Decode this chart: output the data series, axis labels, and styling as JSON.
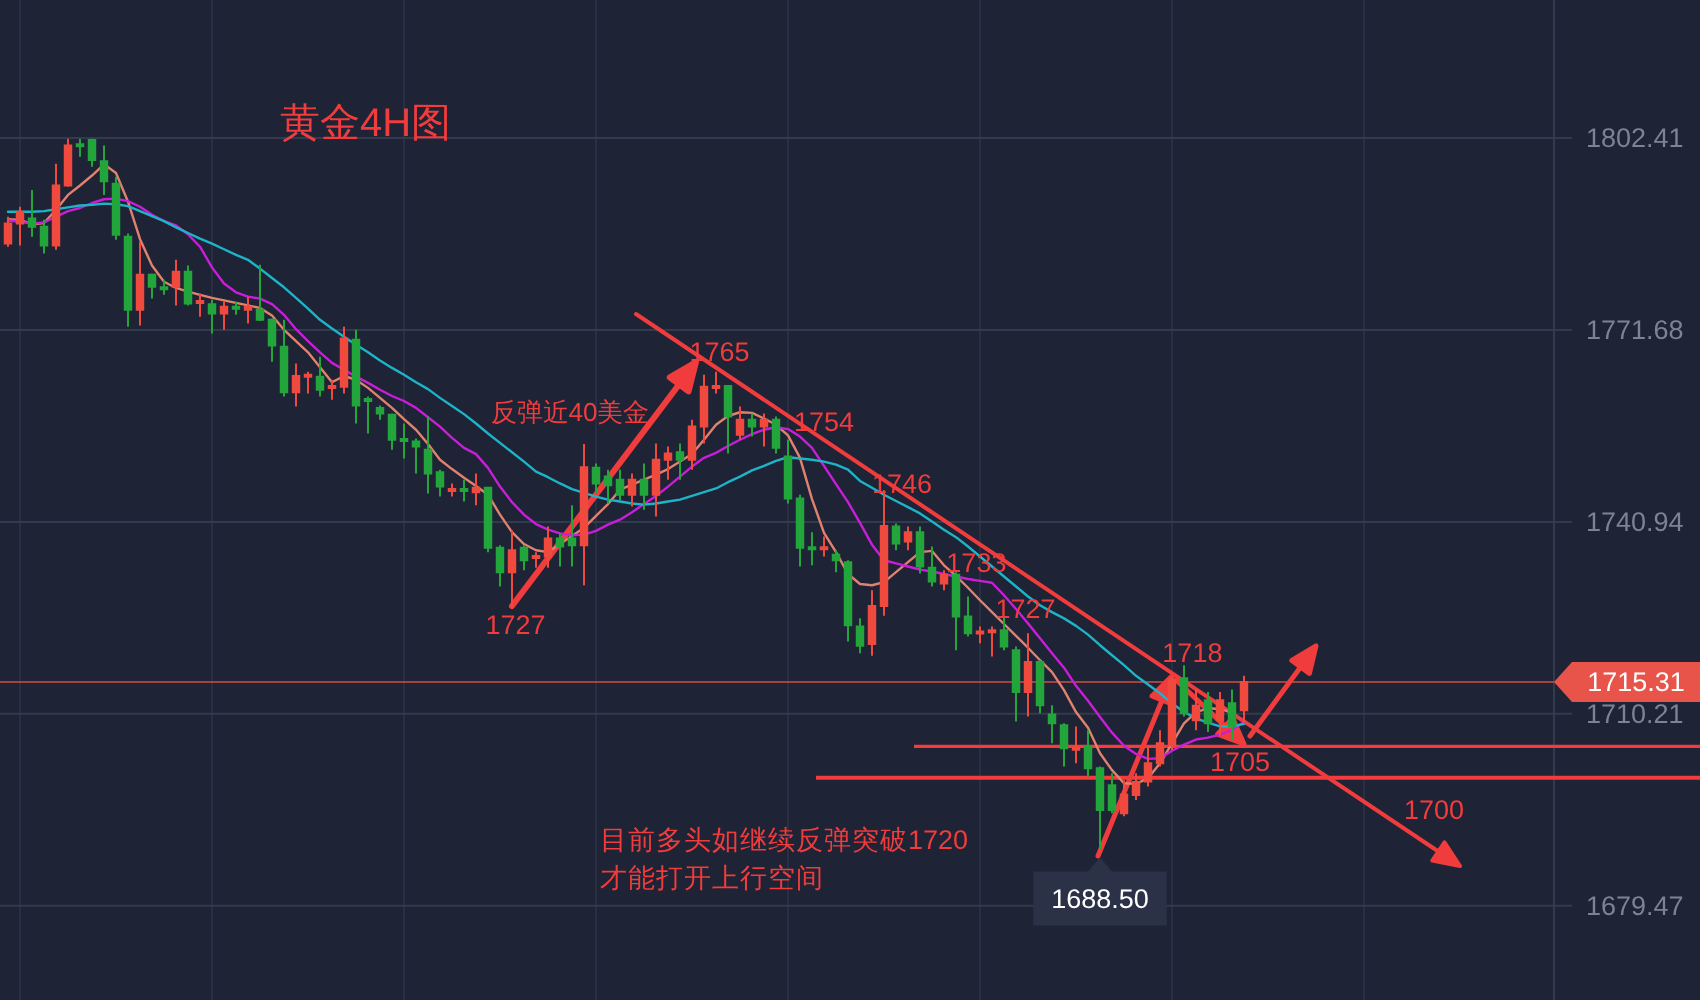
{
  "chart_data": {
    "type": "candlestick",
    "title": "黄金4H图",
    "categories": [
      null,
      null,
      null,
      null,
      null,
      null,
      null,
      null,
      null,
      null,
      null,
      null,
      null,
      null,
      null,
      null,
      null,
      null,
      null,
      null,
      null,
      null,
      null,
      null,
      null,
      null,
      null,
      null,
      null,
      null,
      null,
      null,
      null,
      null,
      null,
      null,
      null,
      null,
      null,
      null,
      null,
      null,
      null,
      null,
      null,
      null,
      null,
      null,
      null,
      null,
      null,
      null,
      null,
      null,
      null,
      null,
      null,
      null,
      null,
      null,
      null,
      null,
      null,
      null,
      null,
      null,
      null,
      null,
      null,
      null,
      null,
      null,
      null,
      null,
      null,
      null,
      null,
      null,
      null,
      null,
      null,
      null,
      null,
      null,
      null,
      null,
      null,
      null,
      null,
      null,
      null,
      null,
      null,
      null,
      null,
      null,
      null,
      null,
      null,
      null,
      null,
      null,
      null,
      null
    ],
    "ohlc": [
      [
        1785.5,
        1789.8,
        1785.0,
        1788.7
      ],
      [
        1788.7,
        1791.4,
        1785.2,
        1790.6
      ],
      [
        1789.5,
        1794.1,
        1786.6,
        1788.2
      ],
      [
        1788.2,
        1789.3,
        1783.9,
        1785.2
      ],
      [
        1785.2,
        1798.3,
        1784.5,
        1794.8
      ],
      [
        1794.8,
        1802.3,
        1794.6,
        1801.2
      ],
      [
        1801.4,
        1802.3,
        1799.4,
        1801.1
      ],
      [
        1802.1,
        1802.3,
        1797.8,
        1798.9
      ],
      [
        1798.7,
        1801.2,
        1793.3,
        1795.5
      ],
      [
        1795.1,
        1796.2,
        1786.1,
        1786.9
      ],
      [
        1786.6,
        1787.1,
        1772.2,
        1774.9
      ],
      [
        1774.9,
        1785.8,
        1772.4,
        1780.5
      ],
      [
        1780.5,
        1780.7,
        1776.7,
        1778.6
      ],
      [
        1778.5,
        1779.7,
        1777.3,
        1778.3
      ],
      [
        1778.6,
        1782.9,
        1775.6,
        1781.0
      ],
      [
        1781.0,
        1782.0,
        1775.6,
        1775.9
      ],
      [
        1776.0,
        1777.5,
        1773.8,
        1776.3
      ],
      [
        1775.8,
        1776.5,
        1771.1,
        1774.3
      ],
      [
        1774.3,
        1776.2,
        1771.7,
        1775.4
      ],
      [
        1775.4,
        1776.2,
        1774.1,
        1775.3
      ],
      [
        1774.9,
        1777.0,
        1772.7,
        1775.4
      ],
      [
        1774.9,
        1782.1,
        1773.1,
        1773.3
      ],
      [
        1773.3,
        1773.5,
        1766.6,
        1769.2
      ],
      [
        1769.0,
        1773.3,
        1761.0,
        1761.7
      ],
      [
        1761.7,
        1766.3,
        1759.4,
        1764.3
      ],
      [
        1764.2,
        1765.0,
        1761.5,
        1764.5
      ],
      [
        1764.2,
        1767.4,
        1761.0,
        1762.1
      ],
      [
        1762.4,
        1763.7,
        1760.5,
        1762.7
      ],
      [
        1762.6,
        1772.2,
        1761.5,
        1770.3
      ],
      [
        1770.1,
        1771.7,
        1756.7,
        1759.6
      ],
      [
        1760.6,
        1761.0,
        1755.1,
        1760.4
      ],
      [
        1759.2,
        1759.6,
        1757.3,
        1758.3
      ],
      [
        1758.1,
        1758.3,
        1752.5,
        1754.1
      ],
      [
        1754.2,
        1756.7,
        1751.1,
        1754.0
      ],
      [
        1753.8,
        1754.3,
        1748.7,
        1753.0
      ],
      [
        1752.5,
        1757.8,
        1745.5,
        1748.7
      ],
      [
        1748.9,
        1749.3,
        1745.0,
        1746.6
      ],
      [
        1745.9,
        1747.1,
        1745.0,
        1746.2
      ],
      [
        1746.2,
        1747.7,
        1744.2,
        1746.0
      ],
      [
        1745.7,
        1748.7,
        1743.6,
        1746.4
      ],
      [
        1746.4,
        1746.5,
        1736.1,
        1736.8
      ],
      [
        1736.8,
        1737.2,
        1730.6,
        1732.9
      ],
      [
        1732.9,
        1739.6,
        1727.0,
        1736.4
      ],
      [
        1736.8,
        1737.2,
        1733.2,
        1734.8
      ],
      [
        1735.2,
        1736.1,
        1733.6,
        1735.5
      ],
      [
        1735.4,
        1740.2,
        1733.6,
        1738.3
      ],
      [
        1738.3,
        1739.1,
        1733.8,
        1737.0
      ],
      [
        1738.3,
        1743.6,
        1733.8,
        1737.2
      ],
      [
        1737.2,
        1753.4,
        1730.8,
        1749.7
      ],
      [
        1749.6,
        1750.3,
        1745.5,
        1747.1
      ],
      [
        1748.2,
        1749.3,
        1743.9,
        1746.8
      ],
      [
        1747.7,
        1749.3,
        1744.4,
        1745.3
      ],
      [
        1745.3,
        1748.7,
        1743.4,
        1747.7
      ],
      [
        1747.7,
        1750.3,
        1742.9,
        1745.3
      ],
      [
        1745.3,
        1753.5,
        1741.8,
        1750.9
      ],
      [
        1750.9,
        1753.0,
        1747.7,
        1751.9
      ],
      [
        1752.1,
        1753.5,
        1747.7,
        1750.9
      ],
      [
        1750.9,
        1757.3,
        1749.3,
        1756.2
      ],
      [
        1756.2,
        1764.5,
        1753.5,
        1762.6
      ],
      [
        1762.5,
        1765.0,
        1761.5,
        1762.7
      ],
      [
        1762.7,
        1762.8,
        1751.9,
        1757.8
      ],
      [
        1754.9,
        1759.4,
        1754.1,
        1757.3
      ],
      [
        1757.3,
        1758.3,
        1754.6,
        1756.2
      ],
      [
        1756.2,
        1758.3,
        1753.0,
        1757.3
      ],
      [
        1757.3,
        1757.8,
        1751.9,
        1752.8
      ],
      [
        1751.4,
        1754.1,
        1743.9,
        1744.7
      ],
      [
        1744.7,
        1745.3,
        1733.8,
        1736.8
      ],
      [
        1736.9,
        1739.3,
        1734.0,
        1736.7
      ],
      [
        1736.7,
        1738.6,
        1735.4,
        1736.9
      ],
      [
        1735.7,
        1736.4,
        1732.9,
        1734.8
      ],
      [
        1734.5,
        1734.8,
        1721.8,
        1724.4
      ],
      [
        1724.2,
        1725.5,
        1719.9,
        1721.1
      ],
      [
        1721.4,
        1730.0,
        1719.5,
        1727.5
      ],
      [
        1727.5,
        1746.0,
        1725.9,
        1740.3
      ],
      [
        1740.2,
        1740.7,
        1736.4,
        1737.5
      ],
      [
        1737.8,
        1740.2,
        1736.4,
        1739.3
      ],
      [
        1739.3,
        1740.2,
        1732.7,
        1733.8
      ],
      [
        1733.6,
        1737.0,
        1730.6,
        1731.4
      ],
      [
        1731.1,
        1733.2,
        1730.0,
        1732.5
      ],
      [
        1732.5,
        1732.9,
        1720.4,
        1725.8
      ],
      [
        1725.8,
        1729.0,
        1722.6,
        1723.1
      ],
      [
        1723.1,
        1724.2,
        1721.5,
        1723.4
      ],
      [
        1723.4,
        1724.2,
        1719.4,
        1723.6
      ],
      [
        1723.6,
        1725.8,
        1720.4,
        1721.0
      ],
      [
        1720.4,
        1721.0,
        1709.0,
        1713.7
      ],
      [
        1713.7,
        1723.1,
        1709.8,
        1718.5
      ],
      [
        1718.5,
        1718.8,
        1710.3,
        1711.6
      ],
      [
        1710.1,
        1711.6,
        1705.5,
        1708.7
      ],
      [
        1708.4,
        1708.7,
        1701.8,
        1704.7
      ],
      [
        1704.6,
        1708.2,
        1702.3,
        1704.8
      ],
      [
        1704.9,
        1707.6,
        1700.2,
        1701.5
      ],
      [
        1701.5,
        1701.8,
        1688.5,
        1694.8
      ],
      [
        1698.8,
        1700.7,
        1694.3,
        1694.8
      ],
      [
        1694.3,
        1699.6,
        1693.8,
        1697.3
      ],
      [
        1697.2,
        1700.7,
        1696.4,
        1699.3
      ],
      [
        1699.4,
        1705.0,
        1698.6,
        1702.3
      ],
      [
        1702.3,
        1707.6,
        1701.8,
        1705.5
      ],
      [
        1705.2,
        1716.2,
        1704.4,
        1715.6
      ],
      [
        1715.9,
        1718.0,
        1709.8,
        1710.3
      ],
      [
        1709.2,
        1714.1,
        1707.6,
        1711.5
      ],
      [
        1712.4,
        1713.7,
        1707.3,
        1708.7
      ],
      [
        1709.2,
        1713.7,
        1706.7,
        1712.4
      ],
      [
        1711.9,
        1714.1,
        1706.0,
        1708.2
      ],
      [
        1710.8,
        1716.3,
        1708.6,
        1715.3
      ]
    ],
    "colors": [
      "#f04a3e",
      "#f04a3e",
      "#22a63c",
      "#22a63c",
      "#f04a3e",
      "#f04a3e",
      "#22a63c",
      "#22a63c",
      "#22a63c",
      "#22a63c",
      "#22a63c",
      "#f04a3e",
      "#22a63c",
      "#22a63c",
      "#f04a3e",
      "#22a63c",
      "#f04a3e",
      "#22a63c",
      "#f04a3e",
      "#22a63c",
      "#f04a3e",
      "#22a63c",
      "#22a63c",
      "#22a63c",
      "#f04a3e",
      "#f04a3e",
      "#22a63c",
      "#f04a3e",
      "#f04a3e",
      "#22a63c",
      "#22a63c",
      "#22a63c",
      "#22a63c",
      "#22a63c",
      "#22a63c",
      "#22a63c",
      "#22a63c",
      "#f04a3e",
      "#22a63c",
      "#f04a3e",
      "#22a63c",
      "#22a63c",
      "#f04a3e",
      "#22a63c",
      "#f04a3e",
      "#f04a3e",
      "#22a63c",
      "#22a63c",
      "#f04a3e",
      "#22a63c",
      "#22a63c",
      "#22a63c",
      "#f04a3e",
      "#22a63c",
      "#f04a3e",
      "#f04a3e",
      "#22a63c",
      "#f04a3e",
      "#f04a3e",
      "#f04a3e",
      "#22a63c",
      "#f04a3e",
      "#22a63c",
      "#f04a3e",
      "#22a63c",
      "#22a63c",
      "#22a63c",
      "#22a63c",
      "#f04a3e",
      "#22a63c",
      "#22a63c",
      "#22a63c",
      "#f04a3e",
      "#f04a3e",
      "#22a63c",
      "#f04a3e",
      "#22a63c",
      "#22a63c",
      "#f04a3e",
      "#22a63c",
      "#22a63c",
      "#f04a3e",
      "#f04a3e",
      "#22a63c",
      "#22a63c",
      "#f04a3e",
      "#22a63c",
      "#22a63c",
      "#22a63c",
      "#f04a3e",
      "#22a63c",
      "#22a63c",
      "#22a63c",
      "#f04a3e",
      "#f04a3e",
      "#f04a3e",
      "#f04a3e",
      "#f04a3e",
      "#22a63c",
      "#f04a3e",
      "#22a63c",
      "#f04a3e",
      "#22a63c",
      "#f04a3e"
    ],
    "series": [
      {
        "type": "line",
        "color": "#e0826e",
        "values": [
          1789.4,
          1789.3,
          1788.6,
          1788.8,
          1790.9,
          1793.3,
          1794.8,
          1796.4,
          1798.2,
          1796.8,
          1792.2,
          1786.2,
          1782.0,
          1779.4,
          1778.4,
          1777.8,
          1777.3,
          1776.8,
          1776.4,
          1776.0,
          1775.6,
          1775.2,
          1774.0,
          1771.7,
          1769.9,
          1768.1,
          1765.7,
          1763.3,
          1764.3,
          1763.7,
          1762.4,
          1760.8,
          1759.2,
          1757.4,
          1755.7,
          1753.4,
          1750.9,
          1749.4,
          1748.0,
          1746.7,
          1745.3,
          1742.1,
          1739.3,
          1737.4,
          1736.4,
          1736.1,
          1737.4,
          1738.7,
          1740.0,
          1741.9,
          1743.8,
          1746.1,
          1746.9,
          1747.7,
          1748.5,
          1749.4,
          1750.6,
          1751.8,
          1754.1,
          1756.5,
          1757.9,
          1758.5,
          1758.4,
          1757.5,
          1756.5,
          1754.8,
          1751.2,
          1744.6,
          1739.2,
          1736.1,
          1732.6,
          1731.0,
          1730.8,
          1731.3,
          1732.9,
          1734.5,
          1736.1,
          1736.3,
          1734.0,
          1732.3,
          1730.4,
          1728.4,
          1726.5,
          1724.6,
          1722.7,
          1720.8,
          1718.8,
          1716.9,
          1714.0,
          1710.5,
          1708.0,
          1703.9,
          1701.2,
          1699.1,
          1699.0,
          1699.9,
          1702.3,
          1705.5,
          1708.7,
          1710.5,
          1711.1,
          1711.0,
          1710.4,
          null
        ]
      },
      {
        "type": "line",
        "color": "#c81ed8",
        "values": [
          1789.2,
          1789.0,
          1788.7,
          1788.9,
          1789.8,
          1790.7,
          1791.2,
          1792.0,
          1792.6,
          1792.7,
          1792.3,
          1791.4,
          1790.1,
          1789.1,
          1788.4,
          1787.0,
          1785.0,
          1781.7,
          1779.1,
          1777.7,
          1777.0,
          1776.7,
          1775.8,
          1774.1,
          1771.8,
          1769.9,
          1768.1,
          1766.4,
          1765.3,
          1764.2,
          1763.2,
          1762.1,
          1761.1,
          1760.3,
          1759.2,
          1757.7,
          1756.2,
          1754.4,
          1752.8,
          1751.8,
          1749.6,
          1746.6,
          1744.1,
          1742.1,
          1740.6,
          1739.7,
          1739.1,
          1738.8,
          1738.9,
          1739.5,
          1740.5,
          1741.3,
          1742.5,
          1743.8,
          1745.1,
          1746.6,
          1748.2,
          1749.8,
          1751.2,
          1752.0,
          1753.1,
          1754.1,
          1755.0,
          1755.7,
          1756.1,
          1755.8,
          1754.6,
          1752.8,
          1749.9,
          1747.0,
          1744.1,
          1740.8,
          1737.3,
          1734.8,
          1734.3,
          1733.8,
          1733.3,
          1733.0,
          1732.6,
          1732.2,
          1731.8,
          1731.5,
          1731.2,
          1729.2,
          1727.0,
          1724.7,
          1722.3,
          1719.9,
          1717.6,
          1714.7,
          1712.3,
          1709.7,
          1707.2,
          1705.1,
          1703.8,
          1703.0,
          1703.1,
          1704.3,
          1705.3,
          1706.1,
          1706.4,
          1706.9,
          1707.6,
          1708.9
        ]
      },
      {
        "type": "line",
        "color": "#1eb4c8",
        "values": [
          1790.6,
          1790.6,
          1790.6,
          1790.7,
          1791.0,
          1791.3,
          1791.6,
          1791.7,
          1791.9,
          1791.8,
          1791.5,
          1790.7,
          1789.9,
          1789.1,
          1788.1,
          1787.2,
          1786.3,
          1785.5,
          1784.6,
          1783.7,
          1782.9,
          1781.5,
          1780.0,
          1778.5,
          1776.8,
          1775.1,
          1773.3,
          1771.9,
          1770.6,
          1769.3,
          1768.1,
          1766.8,
          1765.6,
          1764.5,
          1763.3,
          1762.2,
          1760.8,
          1759.5,
          1758.2,
          1756.7,
          1755.1,
          1753.6,
          1752.1,
          1750.6,
          1749.0,
          1748.1,
          1747.1,
          1746.2,
          1745.6,
          1745.0,
          1744.5,
          1744.2,
          1743.9,
          1743.7,
          1743.9,
          1744.2,
          1744.5,
          1745.1,
          1745.7,
          1746.3,
          1747.3,
          1748.2,
          1749.2,
          1749.9,
          1750.7,
          1751.3,
          1751.1,
          1750.9,
          1750.6,
          1750.1,
          1749.3,
          1747.5,
          1746.4,
          1745.3,
          1744.3,
          1743.3,
          1742.3,
          1741.0,
          1739.7,
          1738.5,
          1737.0,
          1735.4,
          1733.8,
          1732.2,
          1730.6,
          1729.0,
          1727.6,
          1726.5,
          1725.5,
          1724.3,
          1722.9,
          1721.2,
          1719.6,
          1718.0,
          1716.3,
          1714.9,
          1713.5,
          1711.9,
          1710.5,
          1709.5,
          1708.8,
          1708.2,
          1708.2,
          1708.6
        ]
      }
    ],
    "ylim": [
      1664.4,
      1824.5
    ],
    "yticks": [
      1802.41,
      1771.68,
      1740.94,
      1710.21,
      1679.47
    ],
    "grid": true,
    "tick_labels": "y",
    "ref_lines": [
      {
        "axis": "y",
        "value": 1715.31,
        "label": "1715.31",
        "color": "#e8544a"
      },
      {
        "axis": "y",
        "value": 1705,
        "label": "1705",
        "color": "#f53b3b"
      },
      {
        "axis": "y",
        "value": 1700,
        "label": "1700",
        "color": "#f53b3b"
      }
    ],
    "annotations": [
      "反弹近40美金",
      {
        "text": "1765",
        "y": 1765
      },
      "1754",
      "1746",
      {
        "text": "1733",
        "y": 1733
      },
      {
        "text": "1727",
        "y": 1727
      },
      {
        "text": "1727",
        "y": 1727
      },
      {
        "text": "1718",
        "y": 1718
      },
      {
        "text": "1688.50",
        "y": 1688.5
      },
      "目前多头如继续反弹突破1720",
      "才能打开上行空间"
    ]
  }
}
